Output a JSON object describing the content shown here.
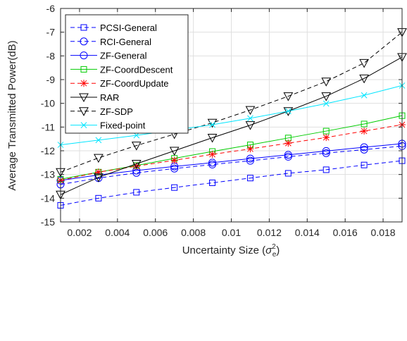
{
  "chart_data": {
    "type": "line",
    "xlabel_prefix": "Uncertainty Size (",
    "xlabel_sigma": "σ",
    "xlabel_sup": "2",
    "xlabel_sub": "e",
    "xlabel_suffix": ")",
    "ylabel": "Average Transmitted Power(dB)",
    "xlim": [
      0.001,
      0.019
    ],
    "ylim": [
      -15,
      -6
    ],
    "xticks": [
      0.002,
      0.004,
      0.006,
      0.008,
      0.01,
      0.012,
      0.014,
      0.016,
      0.018
    ],
    "xtick_labels": [
      "0.002",
      "0.004",
      "0.006",
      "0.008",
      "0.01",
      "0.012",
      "0.014",
      "0.016",
      "0.018"
    ],
    "yticks": [
      -15,
      -14,
      -13,
      -12,
      -11,
      -10,
      -9,
      -8,
      -7,
      -6
    ],
    "ytick_labels": [
      "-15",
      "-14",
      "-13",
      "-12",
      "-11",
      "-10",
      "-9",
      "-8",
      "-7",
      "-6"
    ],
    "grid": true,
    "legend_position": "top-left",
    "x": [
      0.001,
      0.003,
      0.005,
      0.007,
      0.009,
      0.011,
      0.013,
      0.015,
      0.017,
      0.019
    ],
    "series": [
      {
        "name": "PCSI-General",
        "color": "#0000ff",
        "dash": "dashed",
        "marker": "square",
        "values": [
          -14.3,
          -14.0,
          -13.75,
          -13.55,
          -13.35,
          -13.15,
          -12.95,
          -12.8,
          -12.6,
          -12.42
        ]
      },
      {
        "name": "RCI-General",
        "color": "#0000ff",
        "dash": "dashed",
        "marker": "circle",
        "values": [
          -13.42,
          -13.15,
          -12.93,
          -12.75,
          -12.58,
          -12.42,
          -12.25,
          -12.1,
          -11.95,
          -11.8
        ]
      },
      {
        "name": "ZF-General",
        "color": "#0000ff",
        "dash": "solid",
        "marker": "circle",
        "values": [
          -13.25,
          -13.02,
          -12.83,
          -12.66,
          -12.5,
          -12.33,
          -12.17,
          -12.01,
          -11.85,
          -11.7
        ]
      },
      {
        "name": "ZF-CoordDescent",
        "color": "#00cc00",
        "dash": "solid",
        "marker": "square",
        "values": [
          -13.2,
          -12.9,
          -12.62,
          -12.32,
          -12.03,
          -11.75,
          -11.46,
          -11.17,
          -10.87,
          -10.52
        ]
      },
      {
        "name": "ZF-CoordUpdate",
        "color": "#ff0000",
        "dash": "dashed",
        "marker": "star",
        "values": [
          -13.25,
          -12.9,
          -12.65,
          -12.4,
          -12.15,
          -11.92,
          -11.68,
          -11.44,
          -11.17,
          -10.9
        ]
      },
      {
        "name": "RAR",
        "color": "#000000",
        "dash": "solid",
        "marker": "triangle",
        "values": [
          -13.85,
          -13.12,
          -12.55,
          -12.0,
          -11.45,
          -10.92,
          -10.33,
          -9.7,
          -8.95,
          -8.05
        ]
      },
      {
        "name": "ZF-SDP",
        "color": "#000000",
        "dash": "dashed",
        "marker": "triangle",
        "values": [
          -12.9,
          -12.3,
          -11.78,
          -11.3,
          -10.82,
          -10.28,
          -9.7,
          -9.08,
          -8.3,
          -7.0
        ]
      },
      {
        "name": "Fixed-point",
        "color": "#00e5ff",
        "dash": "solid",
        "marker": "x",
        "values": [
          -11.75,
          -11.55,
          -11.35,
          -11.13,
          -10.9,
          -10.63,
          -10.33,
          -10.01,
          -9.66,
          -9.25
        ]
      }
    ]
  }
}
